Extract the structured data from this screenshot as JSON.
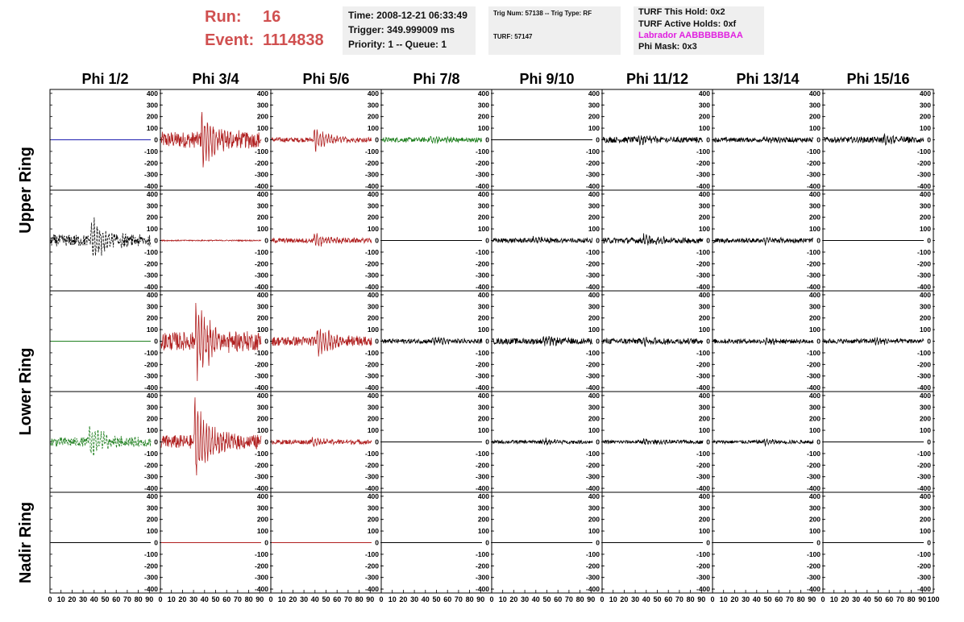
{
  "header": {
    "run_label": "Run:",
    "run_value": "16",
    "event_label": "Event:",
    "event_value": "1114838",
    "time": "Time: 2008-12-21 06:33:49",
    "trigger": "Trigger: 349.999009 ms",
    "priority": "Priority: 1 -- Queue: 1",
    "trig_num": "Trig Num: 57138 -- Trig Type: RF",
    "turf": "TURF: 57147",
    "turf_this_hold": "TURF This Hold: 0x2",
    "turf_active_holds": "TURF Active Holds: 0xf",
    "labrador": "Labrador AABBBBBBAA",
    "phi_mask": "Phi Mask: 0x3"
  },
  "colors": {
    "header_red": "#d05050",
    "labrador_magenta": "#e020e0",
    "trace_red": "#b02020",
    "trace_green": "#208020",
    "trace_blue": "#2020b0",
    "trace_black": "#000000"
  },
  "chart_data": {
    "type": "line",
    "phi_labels": [
      "Phi 1/2",
      "Phi 3/4",
      "Phi 5/6",
      "Phi 7/8",
      "Phi 9/10",
      "Phi 11/12",
      "Phi 13/14",
      "Phi 15/16"
    ],
    "ring_labels": [
      "Upper Ring",
      "Lower Ring",
      "Nadir Ring"
    ],
    "y_ticks": [
      400,
      300,
      200,
      100,
      0,
      -100,
      -200,
      -300,
      -400
    ],
    "x_tick_labels": [
      "0",
      "10",
      "20",
      "30",
      "40",
      "50",
      "60",
      "70",
      "80",
      "90",
      "100"
    ],
    "xlim": [
      0,
      100
    ],
    "ylim": [
      -420,
      420
    ],
    "rows": [
      [
        {
          "color": "blue",
          "amp": 0,
          "burst_at": 0,
          "burst": 0,
          "flat": true
        },
        {
          "color": "red",
          "amp": 70,
          "burst_at": 40,
          "burst": 300,
          "flat": false
        },
        {
          "color": "red",
          "amp": 20,
          "burst_at": 42,
          "burst": 120,
          "flat": false
        },
        {
          "color": "green",
          "amp": 20,
          "burst_at": 48,
          "burst": 40,
          "flat": false
        },
        {
          "color": "black",
          "amp": 0,
          "burst_at": 0,
          "burst": 0,
          "flat": true
        },
        {
          "color": "black",
          "amp": 25,
          "burst_at": 35,
          "burst": 40,
          "flat": false
        },
        {
          "color": "black",
          "amp": 20,
          "burst_at": 50,
          "burst": 30,
          "flat": false
        },
        {
          "color": "black",
          "amp": 25,
          "burst_at": 60,
          "burst": 40,
          "flat": false
        }
      ],
      [
        {
          "color": "black",
          "amp": 50,
          "burst_at": 40,
          "burst": 220,
          "flat": false,
          "dashed": true
        },
        {
          "color": "red",
          "amp": 5,
          "burst_at": 0,
          "burst": 0,
          "flat": false
        },
        {
          "color": "red",
          "amp": 20,
          "burst_at": 42,
          "burst": 80,
          "flat": false
        },
        {
          "color": "black",
          "amp": 0,
          "burst_at": 0,
          "burst": 0,
          "flat": true
        },
        {
          "color": "black",
          "amp": 20,
          "burst_at": 40,
          "burst": 30,
          "flat": false
        },
        {
          "color": "black",
          "amp": 25,
          "burst_at": 40,
          "burst": 50,
          "flat": false
        },
        {
          "color": "black",
          "amp": 20,
          "burst_at": 50,
          "burst": 30,
          "flat": false
        },
        {
          "color": "black",
          "amp": 0,
          "burst_at": 0,
          "burst": 0,
          "flat": true
        }
      ],
      [
        {
          "color": "green",
          "amp": 0,
          "burst_at": 0,
          "burst": 0,
          "flat": true
        },
        {
          "color": "red",
          "amp": 80,
          "burst_at": 34,
          "burst": 380,
          "flat": false
        },
        {
          "color": "red",
          "amp": 40,
          "burst_at": 45,
          "burst": 160,
          "flat": false
        },
        {
          "color": "black",
          "amp": 20,
          "burst_at": 50,
          "burst": 30,
          "flat": false
        },
        {
          "color": "black",
          "amp": 25,
          "burst_at": 50,
          "burst": 40,
          "flat": false
        },
        {
          "color": "black",
          "amp": 25,
          "burst_at": 40,
          "burst": 40,
          "flat": false
        },
        {
          "color": "black",
          "amp": 20,
          "burst_at": 50,
          "burst": 30,
          "flat": false
        },
        {
          "color": "black",
          "amp": 20,
          "burst_at": 50,
          "burst": 30,
          "flat": false
        }
      ],
      [
        {
          "color": "green",
          "amp": 40,
          "burst_at": 38,
          "burst": 200,
          "flat": false,
          "dashed": true
        },
        {
          "color": "red",
          "amp": 60,
          "burst_at": 33,
          "burst": 400,
          "flat": false
        },
        {
          "color": "red",
          "amp": 20,
          "burst_at": 40,
          "burst": 40,
          "flat": false
        },
        {
          "color": "black",
          "amp": 0,
          "burst_at": 0,
          "burst": 0,
          "flat": true
        },
        {
          "color": "black",
          "amp": 15,
          "burst_at": 50,
          "burst": 30,
          "flat": false
        },
        {
          "color": "black",
          "amp": 15,
          "burst_at": 40,
          "burst": 30,
          "flat": false
        },
        {
          "color": "black",
          "amp": 15,
          "burst_at": 50,
          "burst": 30,
          "flat": false
        },
        {
          "color": "black",
          "amp": 0,
          "burst_at": 0,
          "burst": 0,
          "flat": true
        }
      ],
      [
        {
          "color": "black",
          "amp": 0,
          "burst_at": 0,
          "burst": 0,
          "flat": true
        },
        {
          "color": "red",
          "amp": 0,
          "burst_at": 0,
          "burst": 0,
          "flat": true
        },
        {
          "color": "red",
          "amp": 0,
          "burst_at": 0,
          "burst": 0,
          "flat": true
        },
        {
          "color": "black",
          "amp": 0,
          "burst_at": 0,
          "burst": 0,
          "flat": true
        },
        {
          "color": "black",
          "amp": 0,
          "burst_at": 0,
          "burst": 0,
          "flat": true
        },
        {
          "color": "black",
          "amp": 0,
          "burst_at": 0,
          "burst": 0,
          "flat": true
        },
        {
          "color": "black",
          "amp": 0,
          "burst_at": 0,
          "burst": 0,
          "flat": true
        },
        {
          "color": "black",
          "amp": 0,
          "burst_at": 0,
          "burst": 0,
          "flat": true
        }
      ]
    ]
  }
}
